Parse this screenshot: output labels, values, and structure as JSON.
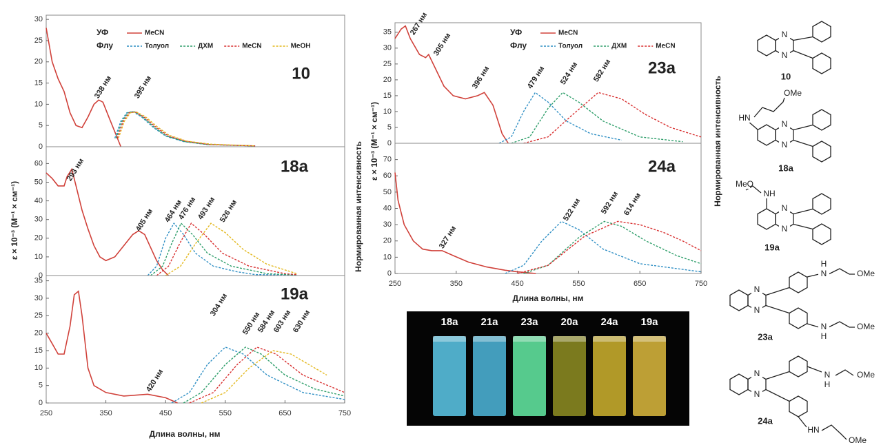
{
  "chart_data": [
    {
      "type": "line",
      "label": "10",
      "xlim": [
        250,
        750
      ],
      "ylim": [
        0,
        31
      ],
      "yticks": [
        0,
        5,
        10,
        15,
        20,
        25,
        30
      ],
      "legend_labels": {
        "solid": "УФ",
        "dashed": "Флу"
      },
      "annotations": [
        "338 нм",
        "395 нм"
      ],
      "series": [
        {
          "name": "MeCN",
          "color": "#d0413a",
          "style": "solid",
          "x": [
            250,
            260,
            270,
            280,
            290,
            300,
            310,
            320,
            330,
            338,
            345,
            355,
            365,
            375
          ],
          "values": [
            28,
            20,
            16,
            13,
            8,
            5,
            4.5,
            7,
            10,
            11,
            10.5,
            7,
            3.5,
            0
          ]
        },
        {
          "name": "Толуол",
          "color": "#2f8fc4",
          "style": "dashed",
          "x": [
            365,
            375,
            385,
            395,
            410,
            430,
            450,
            480,
            520,
            600
          ],
          "values": [
            2,
            6,
            8,
            8.3,
            7,
            4.5,
            2.5,
            1.2,
            0.5,
            0.2
          ]
        },
        {
          "name": "ДХМ",
          "color": "#2e9e6a",
          "style": "dashed",
          "x": [
            367,
            377,
            387,
            397,
            412,
            432,
            452,
            482,
            522,
            600
          ],
          "values": [
            2,
            6,
            8,
            8.3,
            7,
            4.5,
            2.5,
            1.2,
            0.5,
            0.2
          ]
        },
        {
          "name": "MeCN",
          "color": "#d83030",
          "style": "dashed",
          "x": [
            369,
            379,
            389,
            399,
            414,
            434,
            454,
            484,
            524,
            600
          ],
          "values": [
            2,
            6,
            8,
            8.2,
            7,
            4.6,
            2.6,
            1.3,
            0.5,
            0.2
          ]
        },
        {
          "name": "MeOH",
          "color": "#e3b81d",
          "style": "dashed",
          "x": [
            371,
            381,
            391,
            401,
            416,
            436,
            456,
            486,
            526,
            600
          ],
          "values": [
            2,
            6,
            8,
            8.2,
            7.1,
            4.7,
            2.7,
            1.3,
            0.6,
            0.2
          ]
        }
      ]
    },
    {
      "type": "line",
      "label": "18a",
      "xlim": [
        250,
        750
      ],
      "ylim": [
        0,
        69
      ],
      "yticks": [
        0,
        10,
        20,
        30,
        40,
        50,
        60
      ],
      "annotations": [
        "293 нм",
        "405 нм",
        "464 нм",
        "476 нм",
        "493 нм",
        "526 нм"
      ],
      "series": [
        {
          "color": "#d0413a",
          "style": "solid",
          "x": [
            250,
            260,
            270,
            280,
            285,
            293,
            300,
            310,
            320,
            330,
            340,
            350,
            365,
            380,
            395,
            405,
            415,
            425,
            435,
            445,
            455
          ],
          "values": [
            55,
            52,
            48,
            48,
            53,
            57,
            48,
            35,
            25,
            16,
            10,
            8,
            10,
            16,
            22,
            24,
            22,
            15,
            8,
            3,
            0
          ]
        },
        {
          "color": "#2f8fc4",
          "style": "dashed",
          "x": [
            420,
            435,
            450,
            464,
            480,
            500,
            530,
            570,
            600,
            670
          ],
          "values": [
            0,
            5,
            20,
            28,
            22,
            12,
            5,
            2,
            0.5,
            0.2
          ]
        },
        {
          "color": "#2e9e6a",
          "style": "dashed",
          "x": [
            425,
            445,
            460,
            476,
            495,
            520,
            560,
            620,
            670
          ],
          "values": [
            0,
            5,
            17,
            28,
            22,
            12,
            5,
            1,
            0.3
          ]
        },
        {
          "color": "#d83030",
          "style": "dashed",
          "x": [
            435,
            455,
            475,
            493,
            515,
            545,
            590,
            650,
            670
          ],
          "values": [
            0,
            5,
            18,
            28,
            22,
            12,
            5,
            1,
            0.5
          ]
        },
        {
          "color": "#e3b81d",
          "style": "dashed",
          "x": [
            450,
            475,
            500,
            526,
            550,
            580,
            620,
            670
          ],
          "values": [
            0,
            5,
            17,
            28,
            23,
            14,
            6,
            1
          ]
        }
      ]
    },
    {
      "type": "line",
      "label": "19a",
      "xlim": [
        250,
        750
      ],
      "ylim": [
        0,
        36.5
      ],
      "yticks": [
        0,
        5,
        10,
        15,
        20,
        25,
        30,
        35
      ],
      "xticks": [
        250,
        350,
        450,
        550,
        650,
        750
      ],
      "annotations": [
        "304 нм",
        "420 нм",
        "550 нм",
        "584 нм",
        "603 нм",
        "630 нм"
      ],
      "series": [
        {
          "color": "#d0413a",
          "style": "solid",
          "x": [
            250,
            260,
            270,
            280,
            290,
            297,
            304,
            310,
            320,
            330,
            350,
            380,
            420,
            450,
            470
          ],
          "values": [
            20,
            17,
            14,
            14,
            22,
            31,
            32,
            25,
            10,
            5,
            3,
            2,
            2.5,
            1.5,
            0
          ]
        },
        {
          "color": "#2f8fc4",
          "style": "dashed",
          "x": [
            460,
            490,
            520,
            550,
            580,
            620,
            680,
            750
          ],
          "values": [
            0,
            3,
            11,
            16,
            14,
            8,
            3,
            1
          ]
        },
        {
          "color": "#2e9e6a",
          "style": "dashed",
          "x": [
            480,
            510,
            550,
            584,
            610,
            650,
            700,
            750
          ],
          "values": [
            0,
            3,
            11,
            16,
            14,
            8,
            4,
            2
          ]
        },
        {
          "color": "#d83030",
          "style": "dashed",
          "x": [
            490,
            530,
            570,
            603,
            635,
            680,
            750
          ],
          "values": [
            0,
            3,
            11,
            16,
            14,
            8,
            3
          ]
        },
        {
          "color": "#e3b81d",
          "style": "dashed",
          "x": [
            510,
            550,
            590,
            630,
            660,
            690,
            720
          ],
          "values": [
            0,
            3,
            10,
            15,
            14,
            11,
            8
          ]
        }
      ]
    },
    {
      "type": "line",
      "label": "23a",
      "xlim": [
        250,
        750
      ],
      "ylim": [
        0,
        38
      ],
      "yticks": [
        0,
        5,
        10,
        15,
        20,
        25,
        30,
        35
      ],
      "legend_labels": {
        "solid": "УФ",
        "dashed": "Флу"
      },
      "annotations": [
        "267 нм",
        "305 нм",
        "396 нм",
        "479 нм",
        "524 нм",
        "582 нм"
      ],
      "series": [
        {
          "name": "MeCN",
          "color": "#d0413a",
          "style": "solid",
          "x": [
            250,
            260,
            267,
            275,
            290,
            300,
            305,
            315,
            330,
            345,
            365,
            385,
            396,
            410,
            425,
            435
          ],
          "values": [
            33,
            36,
            37,
            33,
            28,
            27,
            28,
            24,
            18,
            15,
            14,
            15,
            16,
            12,
            3,
            0
          ]
        },
        {
          "name": "Толуол",
          "color": "#2f8fc4",
          "style": "dashed",
          "x": [
            420,
            440,
            460,
            479,
            500,
            530,
            570,
            620
          ],
          "values": [
            0,
            2,
            10,
            16,
            13,
            7,
            3,
            1
          ]
        },
        {
          "name": "ДХМ",
          "color": "#2e9e6a",
          "style": "dashed",
          "x": [
            440,
            470,
            500,
            524,
            550,
            590,
            650,
            720
          ],
          "values": [
            0,
            2,
            11,
            16,
            13,
            7,
            2,
            0.5
          ]
        },
        {
          "name": "MeCN",
          "color": "#d83030",
          "style": "dashed",
          "x": [
            460,
            500,
            540,
            582,
            620,
            660,
            700,
            750
          ],
          "values": [
            0,
            2,
            9,
            16,
            14,
            9,
            5,
            2
          ]
        }
      ]
    },
    {
      "type": "line",
      "label": "24a",
      "xlim": [
        250,
        750
      ],
      "ylim": [
        0,
        80
      ],
      "yticks": [
        0,
        10,
        20,
        30,
        40,
        50,
        60,
        70
      ],
      "xticks": [
        250,
        350,
        450,
        550,
        650,
        750
      ],
      "annotations": [
        "327 нм",
        "522 нм",
        "592 нм",
        "614 нм"
      ],
      "series": [
        {
          "color": "#d0413a",
          "style": "solid",
          "x": [
            250,
            255,
            265,
            280,
            295,
            310,
            327,
            345,
            370,
            400,
            430,
            450,
            480
          ],
          "values": [
            62,
            45,
            30,
            20,
            15,
            14,
            14,
            11,
            7,
            4,
            2,
            1,
            0
          ]
        },
        {
          "color": "#2f8fc4",
          "style": "dashed",
          "x": [
            430,
            460,
            490,
            522,
            550,
            590,
            650,
            750
          ],
          "values": [
            0,
            5,
            20,
            32,
            27,
            15,
            6,
            1
          ]
        },
        {
          "color": "#2e9e6a",
          "style": "dashed",
          "x": [
            460,
            500,
            550,
            592,
            620,
            660,
            710,
            750
          ],
          "values": [
            0,
            5,
            22,
            32,
            29,
            20,
            11,
            6
          ]
        },
        {
          "color": "#d83030",
          "style": "dashed",
          "x": [
            450,
            500,
            560,
            614,
            650,
            690,
            720,
            750
          ],
          "values": [
            0,
            5,
            23,
            32,
            30,
            25,
            20,
            14
          ]
        }
      ]
    }
  ],
  "left_figure": {
    "xlabel": "Длина волны, нм",
    "ylabel": "ε × 10⁻³ (М⁻¹ × см⁻¹)",
    "y2label": "Нормированная интенсивность"
  },
  "middle_figure": {
    "xlabel": "Длина волны, нм",
    "ylabel": "ε × 10⁻³ (М⁻¹ × см⁻¹)",
    "y2label": "Нормированная интенсивность"
  },
  "photo": {
    "labels": [
      "18a",
      "21a",
      "23a",
      "20a",
      "24a",
      "19a"
    ]
  },
  "structures": [
    {
      "label": "10",
      "atoms": [
        "N",
        "N"
      ]
    },
    {
      "label": "18a",
      "atoms": [
        "N",
        "N",
        "HN",
        "OMe"
      ]
    },
    {
      "label": "19a",
      "atoms": [
        "N",
        "N",
        "NH",
        "MeO"
      ]
    },
    {
      "label": "23a",
      "atoms": [
        "N",
        "N",
        "H",
        "N",
        "OMe",
        "N",
        "H",
        "OMe"
      ]
    },
    {
      "label": "24a",
      "atoms": [
        "N",
        "N",
        "N",
        "H",
        "OMe",
        "HN",
        "OMe"
      ]
    }
  ]
}
